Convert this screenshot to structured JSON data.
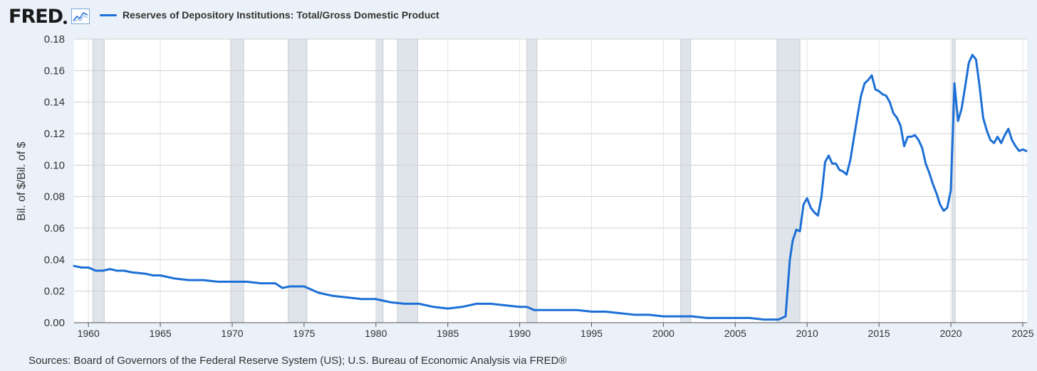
{
  "header": {
    "logo": "FRED",
    "legend_label": "Reserves of Depository Institutions: Total/Gross Domestic Product",
    "line_color": "#1c6fd6"
  },
  "footer": {
    "source": "Sources: Board of Governors of the Federal Reserve System (US); U.S. Bureau of Economic Analysis via FRED®"
  },
  "chart_data": {
    "type": "line",
    "title": "Reserves of Depository Institutions: Total/Gross Domestic Product",
    "xlabel": "",
    "ylabel": "Bil. of $/Bil. of $",
    "xlim": [
      1959,
      2025.3
    ],
    "ylim": [
      0,
      0.18
    ],
    "x_ticks": [
      1960,
      1965,
      1970,
      1975,
      1980,
      1985,
      1990,
      1995,
      2000,
      2005,
      2010,
      2015,
      2020,
      2025
    ],
    "y_ticks": [
      "0.00",
      "0.02",
      "0.04",
      "0.06",
      "0.08",
      "0.10",
      "0.12",
      "0.14",
      "0.16",
      "0.18"
    ],
    "recessions": [
      [
        1960.3,
        1961.1
      ],
      [
        1969.9,
        1970.8
      ],
      [
        1973.9,
        1975.2
      ],
      [
        1980.0,
        1980.5
      ],
      [
        1981.5,
        1982.9
      ],
      [
        1990.5,
        1991.2
      ],
      [
        2001.2,
        2001.9
      ],
      [
        2007.9,
        2009.5
      ],
      [
        2020.1,
        2020.3
      ]
    ],
    "series": [
      {
        "name": "Reserves of Depository Institutions: Total/Gross Domestic Product",
        "color": "#1c6fd6",
        "points": [
          [
            1959.0,
            0.036
          ],
          [
            1959.5,
            0.035
          ],
          [
            1960.0,
            0.035
          ],
          [
            1960.5,
            0.033
          ],
          [
            1961.0,
            0.033
          ],
          [
            1961.5,
            0.034
          ],
          [
            1962.0,
            0.033
          ],
          [
            1962.5,
            0.033
          ],
          [
            1963.0,
            0.032
          ],
          [
            1964.0,
            0.031
          ],
          [
            1964.5,
            0.03
          ],
          [
            1965.0,
            0.03
          ],
          [
            1966.0,
            0.028
          ],
          [
            1967.0,
            0.027
          ],
          [
            1968.0,
            0.027
          ],
          [
            1969.0,
            0.026
          ],
          [
            1970.0,
            0.026
          ],
          [
            1971.0,
            0.026
          ],
          [
            1972.0,
            0.025
          ],
          [
            1973.0,
            0.025
          ],
          [
            1973.5,
            0.022
          ],
          [
            1974.0,
            0.023
          ],
          [
            1975.0,
            0.023
          ],
          [
            1975.5,
            0.021
          ],
          [
            1976.0,
            0.019
          ],
          [
            1977.0,
            0.017
          ],
          [
            1978.0,
            0.016
          ],
          [
            1979.0,
            0.015
          ],
          [
            1980.0,
            0.015
          ],
          [
            1980.5,
            0.014
          ],
          [
            1981.0,
            0.013
          ],
          [
            1982.0,
            0.012
          ],
          [
            1983.0,
            0.012
          ],
          [
            1984.0,
            0.01
          ],
          [
            1985.0,
            0.009
          ],
          [
            1986.0,
            0.01
          ],
          [
            1987.0,
            0.012
          ],
          [
            1988.0,
            0.012
          ],
          [
            1989.0,
            0.011
          ],
          [
            1990.0,
            0.01
          ],
          [
            1990.5,
            0.01
          ],
          [
            1991.0,
            0.008
          ],
          [
            1992.0,
            0.008
          ],
          [
            1993.0,
            0.008
          ],
          [
            1994.0,
            0.008
          ],
          [
            1995.0,
            0.007
          ],
          [
            1996.0,
            0.007
          ],
          [
            1997.0,
            0.006
          ],
          [
            1998.0,
            0.005
          ],
          [
            1999.0,
            0.005
          ],
          [
            2000.0,
            0.004
          ],
          [
            2001.0,
            0.004
          ],
          [
            2001.5,
            0.004
          ],
          [
            2002.0,
            0.004
          ],
          [
            2003.0,
            0.003
          ],
          [
            2004.0,
            0.003
          ],
          [
            2005.0,
            0.003
          ],
          [
            2006.0,
            0.003
          ],
          [
            2007.0,
            0.002
          ],
          [
            2008.0,
            0.002
          ],
          [
            2008.5,
            0.004
          ],
          [
            2008.8,
            0.04
          ],
          [
            2009.0,
            0.052
          ],
          [
            2009.25,
            0.059
          ],
          [
            2009.5,
            0.058
          ],
          [
            2009.75,
            0.075
          ],
          [
            2010.0,
            0.079
          ],
          [
            2010.25,
            0.073
          ],
          [
            2010.5,
            0.07
          ],
          [
            2010.75,
            0.068
          ],
          [
            2011.0,
            0.08
          ],
          [
            2011.25,
            0.102
          ],
          [
            2011.5,
            0.106
          ],
          [
            2011.75,
            0.101
          ],
          [
            2012.0,
            0.101
          ],
          [
            2012.25,
            0.097
          ],
          [
            2012.5,
            0.096
          ],
          [
            2012.75,
            0.094
          ],
          [
            2013.0,
            0.103
          ],
          [
            2013.25,
            0.117
          ],
          [
            2013.5,
            0.131
          ],
          [
            2013.75,
            0.144
          ],
          [
            2014.0,
            0.152
          ],
          [
            2014.25,
            0.154
          ],
          [
            2014.5,
            0.157
          ],
          [
            2014.75,
            0.148
          ],
          [
            2015.0,
            0.147
          ],
          [
            2015.25,
            0.145
          ],
          [
            2015.5,
            0.144
          ],
          [
            2015.75,
            0.14
          ],
          [
            2016.0,
            0.133
          ],
          [
            2016.25,
            0.13
          ],
          [
            2016.5,
            0.125
          ],
          [
            2016.75,
            0.112
          ],
          [
            2017.0,
            0.118
          ],
          [
            2017.25,
            0.118
          ],
          [
            2017.5,
            0.119
          ],
          [
            2017.75,
            0.116
          ],
          [
            2018.0,
            0.111
          ],
          [
            2018.25,
            0.101
          ],
          [
            2018.5,
            0.095
          ],
          [
            2018.75,
            0.088
          ],
          [
            2019.0,
            0.082
          ],
          [
            2019.25,
            0.075
          ],
          [
            2019.5,
            0.071
          ],
          [
            2019.75,
            0.073
          ],
          [
            2020.0,
            0.084
          ],
          [
            2020.25,
            0.152
          ],
          [
            2020.5,
            0.128
          ],
          [
            2020.75,
            0.136
          ],
          [
            2021.0,
            0.15
          ],
          [
            2021.25,
            0.165
          ],
          [
            2021.5,
            0.17
          ],
          [
            2021.75,
            0.167
          ],
          [
            2022.0,
            0.15
          ],
          [
            2022.25,
            0.13
          ],
          [
            2022.5,
            0.122
          ],
          [
            2022.75,
            0.116
          ],
          [
            2023.0,
            0.114
          ],
          [
            2023.25,
            0.118
          ],
          [
            2023.5,
            0.114
          ],
          [
            2023.75,
            0.119
          ],
          [
            2024.0,
            0.123
          ],
          [
            2024.25,
            0.116
          ],
          [
            2024.5,
            0.112
          ],
          [
            2024.75,
            0.109
          ],
          [
            2025.0,
            0.11
          ],
          [
            2025.25,
            0.109
          ]
        ]
      }
    ]
  }
}
